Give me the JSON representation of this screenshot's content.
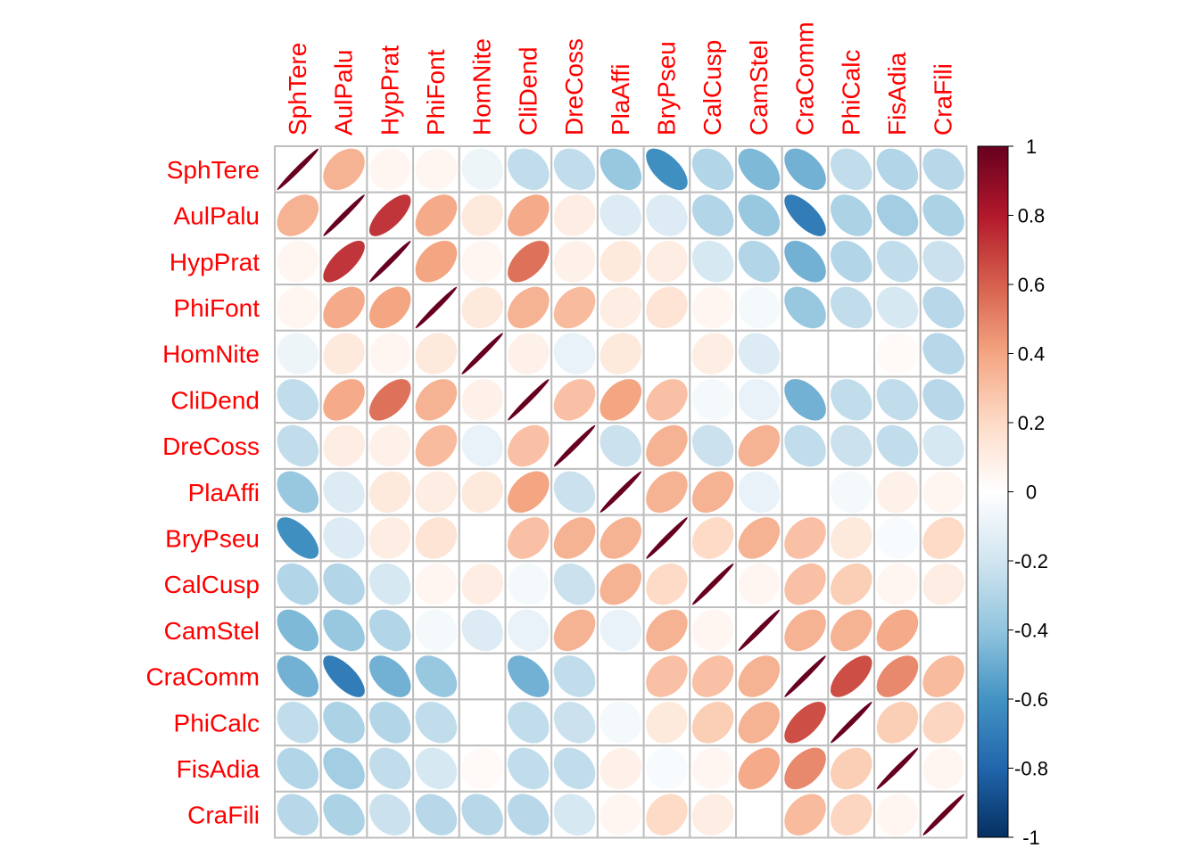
{
  "chart_data": {
    "type": "heatmap",
    "method": "ellipse",
    "variables": [
      "SphTere",
      "AulPalu",
      "HypPrat",
      "PhiFont",
      "HomNite",
      "CliDend",
      "DreCoss",
      "PlaAffi",
      "BryPseu",
      "CalCusp",
      "CamStel",
      "CraComm",
      "PhiCalc",
      "FisAdia",
      "CraFili"
    ],
    "matrix": [
      [
        1.0,
        0.35,
        0.05,
        0.05,
        -0.08,
        -0.25,
        -0.25,
        -0.38,
        -0.62,
        -0.3,
        -0.45,
        -0.48,
        -0.25,
        -0.3,
        -0.28
      ],
      [
        0.35,
        1.0,
        0.72,
        0.38,
        0.12,
        0.38,
        0.1,
        -0.15,
        -0.15,
        -0.3,
        -0.38,
        -0.7,
        -0.32,
        -0.35,
        -0.32
      ],
      [
        0.05,
        0.72,
        1.0,
        0.4,
        0.05,
        0.55,
        0.08,
        0.12,
        0.1,
        -0.18,
        -0.3,
        -0.48,
        -0.3,
        -0.25,
        -0.22
      ],
      [
        0.05,
        0.38,
        0.4,
        1.0,
        0.12,
        0.35,
        0.32,
        0.1,
        0.15,
        0.05,
        -0.05,
        -0.38,
        -0.25,
        -0.18,
        -0.28
      ],
      [
        -0.08,
        0.12,
        0.05,
        0.12,
        1.0,
        0.08,
        -0.1,
        0.12,
        0.0,
        0.1,
        -0.15,
        0.0,
        0.0,
        0.03,
        -0.28
      ],
      [
        -0.25,
        0.38,
        0.55,
        0.35,
        0.08,
        1.0,
        0.3,
        0.4,
        0.3,
        -0.05,
        -0.1,
        -0.48,
        -0.25,
        -0.25,
        -0.28
      ],
      [
        -0.25,
        0.1,
        0.08,
        0.32,
        -0.1,
        0.3,
        1.0,
        -0.22,
        0.35,
        -0.22,
        0.35,
        -0.25,
        -0.22,
        -0.25,
        -0.18
      ],
      [
        -0.38,
        -0.15,
        0.12,
        0.1,
        0.12,
        0.4,
        -0.22,
        1.0,
        0.35,
        0.35,
        -0.1,
        0.0,
        -0.05,
        0.08,
        0.05
      ],
      [
        -0.62,
        -0.15,
        0.1,
        0.15,
        0.0,
        0.3,
        0.35,
        0.35,
        1.0,
        0.2,
        0.35,
        0.3,
        0.12,
        -0.03,
        0.2
      ],
      [
        -0.3,
        -0.3,
        -0.18,
        0.05,
        0.1,
        -0.05,
        -0.22,
        0.35,
        0.2,
        1.0,
        0.05,
        0.3,
        0.25,
        0.05,
        0.1
      ],
      [
        -0.45,
        -0.38,
        -0.3,
        -0.05,
        -0.15,
        -0.1,
        0.35,
        -0.1,
        0.35,
        0.05,
        1.0,
        0.35,
        0.35,
        0.38,
        0.0
      ],
      [
        -0.48,
        -0.7,
        -0.48,
        -0.38,
        0.0,
        -0.48,
        -0.25,
        0.0,
        0.3,
        0.3,
        0.35,
        1.0,
        0.65,
        0.48,
        0.32
      ],
      [
        -0.25,
        -0.32,
        -0.3,
        -0.25,
        0.0,
        -0.25,
        -0.22,
        -0.05,
        0.12,
        0.25,
        0.35,
        0.65,
        1.0,
        0.25,
        0.22
      ],
      [
        -0.3,
        -0.35,
        -0.25,
        -0.18,
        0.03,
        -0.25,
        -0.25,
        0.08,
        -0.03,
        0.05,
        0.38,
        0.48,
        0.25,
        1.0,
        0.05
      ],
      [
        -0.28,
        -0.32,
        -0.22,
        -0.28,
        -0.28,
        -0.28,
        -0.18,
        0.05,
        0.2,
        0.1,
        0.0,
        0.32,
        0.22,
        0.05,
        1.0
      ]
    ],
    "colorbar": {
      "min": -1,
      "max": 1,
      "ticks": [
        "1",
        "0.8",
        "0.6",
        "0.4",
        "0.2",
        "0",
        "-0.2",
        "-0.4",
        "-0.6",
        "-0.8",
        "-1"
      ],
      "colors": [
        "#67001F",
        "#B2182B",
        "#D6604D",
        "#F4A582",
        "#FDDBC7",
        "#FFFFFF",
        "#D1E5F0",
        "#92C5DE",
        "#4393C3",
        "#2166AC",
        "#053061"
      ]
    },
    "label_color": "#FF0000",
    "grid_color": "#BEBEBE"
  }
}
